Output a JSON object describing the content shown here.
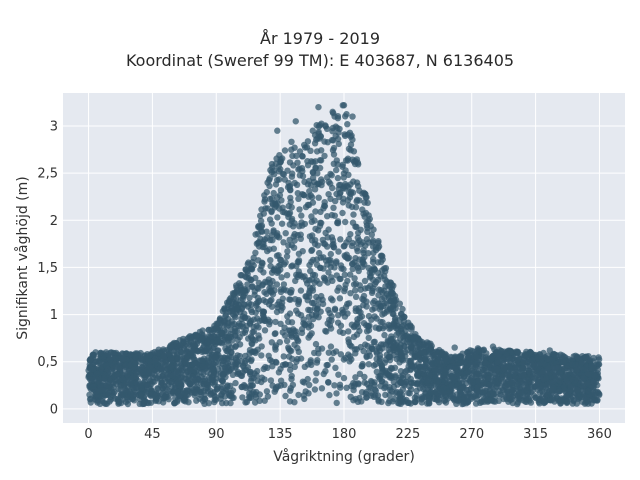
{
  "chart_data": {
    "type": "scatter",
    "title": "År 1979 - 2019",
    "subtitle": "Koordinat (Sweref 99 TM): E 403687, N 6136405",
    "xlabel": "Vågriktning (grader)",
    "ylabel": "Signifikant våghöjd (m)",
    "xlim": [
      -18,
      378
    ],
    "ylim": [
      -0.15,
      3.35
    ],
    "x_ticks": [
      0,
      45,
      90,
      135,
      180,
      225,
      270,
      315,
      360
    ],
    "x_tick_labels": [
      "0",
      "45",
      "90",
      "135",
      "180",
      "225",
      "270",
      "315",
      "360"
    ],
    "y_ticks": [
      0,
      0.5,
      1,
      1.5,
      2,
      2.5,
      3
    ],
    "y_tick_labels": [
      "0",
      "0,5",
      "1",
      "1,5",
      "2",
      "2,5",
      "3"
    ],
    "grid": true,
    "marker_color": "#34586e",
    "plot_background": "#e5e9f0",
    "envelope": {
      "x": [
        0,
        45,
        90,
        100,
        110,
        120,
        130,
        140,
        150,
        160,
        170,
        180,
        190,
        200,
        210,
        220,
        230,
        240,
        250,
        260,
        270,
        315,
        360
      ],
      "max_height": [
        0.6,
        0.6,
        0.9,
        1.2,
        1.5,
        2.0,
        2.7,
        2.85,
        2.8,
        3.0,
        3.2,
        3.25,
        2.6,
        2.0,
        1.5,
        1.1,
        0.8,
        0.7,
        0.6,
        0.55,
        0.65,
        0.6,
        0.55
      ],
      "min_height": [
        0.05,
        0.05,
        0.05,
        0.05,
        0.05,
        0.05,
        0.05,
        0.05,
        0.05,
        0.05,
        0.05,
        0.05,
        0.05,
        0.05,
        0.05,
        0.05,
        0.05,
        0.05,
        0.05,
        0.05,
        0.05,
        0.05,
        0.05
      ]
    },
    "outliers": [
      {
        "x": 133,
        "y": 2.95
      },
      {
        "x": 162,
        "y": 3.2
      },
      {
        "x": 172,
        "y": 3.15
      },
      {
        "x": 180,
        "y": 3.22
      },
      {
        "x": 186,
        "y": 3.1
      },
      {
        "x": 146,
        "y": 3.05
      },
      {
        "x": 158,
        "y": 2.95
      },
      {
        "x": 1,
        "y": 0.52
      },
      {
        "x": 5,
        "y": 0.6
      },
      {
        "x": 325,
        "y": 0.62
      },
      {
        "x": 258,
        "y": 0.65
      },
      {
        "x": 285,
        "y": 0.66
      }
    ]
  }
}
